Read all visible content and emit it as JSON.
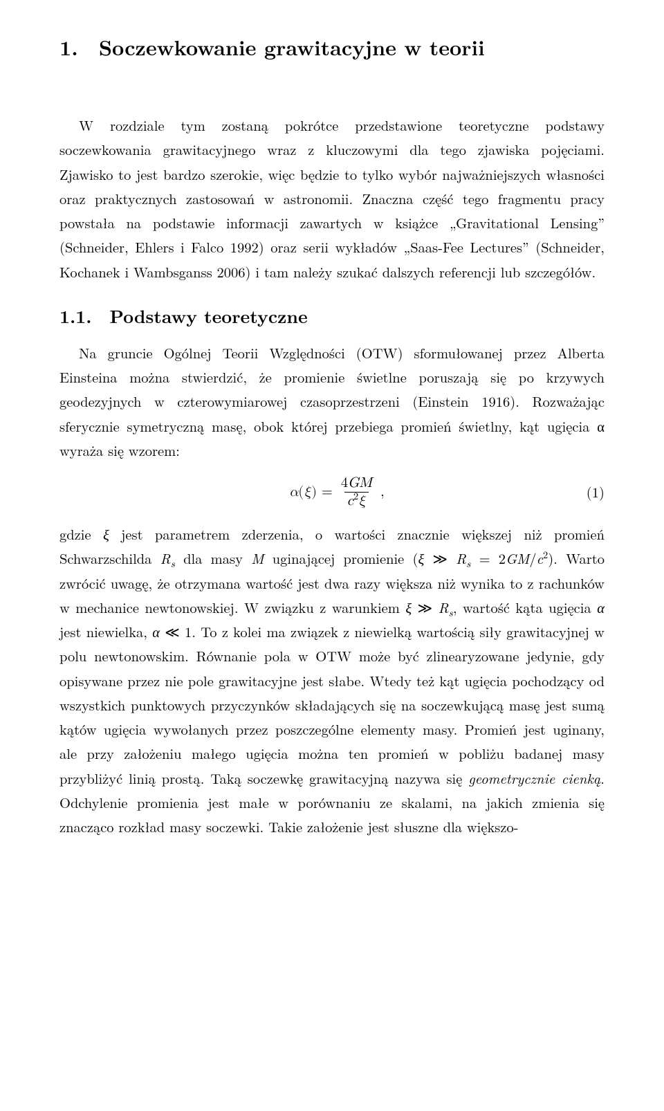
{
  "chapter": {
    "title": "1. Soczewkowanie grawitacyjne w teorii"
  },
  "intro": {
    "text": "W rozdziale tym zostaną pokrótce przedstawione teoretyczne podstawy soczewkowania grawitacyjnego wraz z kluczowymi dla tego zjawiska pojęciami. Zjawisko to jest bardzo szerokie, więc będzie to tylko wybór najważniejszych własności oraz praktycznych zastosowań w astronomii. Znaczna część tego fragmentu pracy powstała na podstawie informacji zawartych w książce „Gravitational Lensing” (Schneider, Ehlers i Falco 1992) oraz serii wykładów „Saas-Fee Lectures” (Schneider, Kochanek i Wambsganss 2006) i tam należy szukać dalszych referencji lub szczegółów."
  },
  "section_1_1": {
    "title": "1.1. Podstawy teoretyczne",
    "para_before_eq": "Na gruncie Ogólnej Teorii Względności (OTW) sformułowanej przez Alberta Einsteina można stwierdzić, że promienie świetlne poruszają się po krzywych geodezyjnych w czterowymiarowej czasoprzestrzeni (Einstein 1916). Rozważając sferycznie symetryczną masę, obok której przebiega promień świetlny, kąt ugięcia α wyraża się wzorem:",
    "equation": {
      "lhs_alpha": "α",
      "lhs_xi": "ξ",
      "numerator": "4GM",
      "denom_c": "c",
      "denom_sup": "2",
      "denom_xi": "ξ",
      "number": "(1)"
    }
  }
}
